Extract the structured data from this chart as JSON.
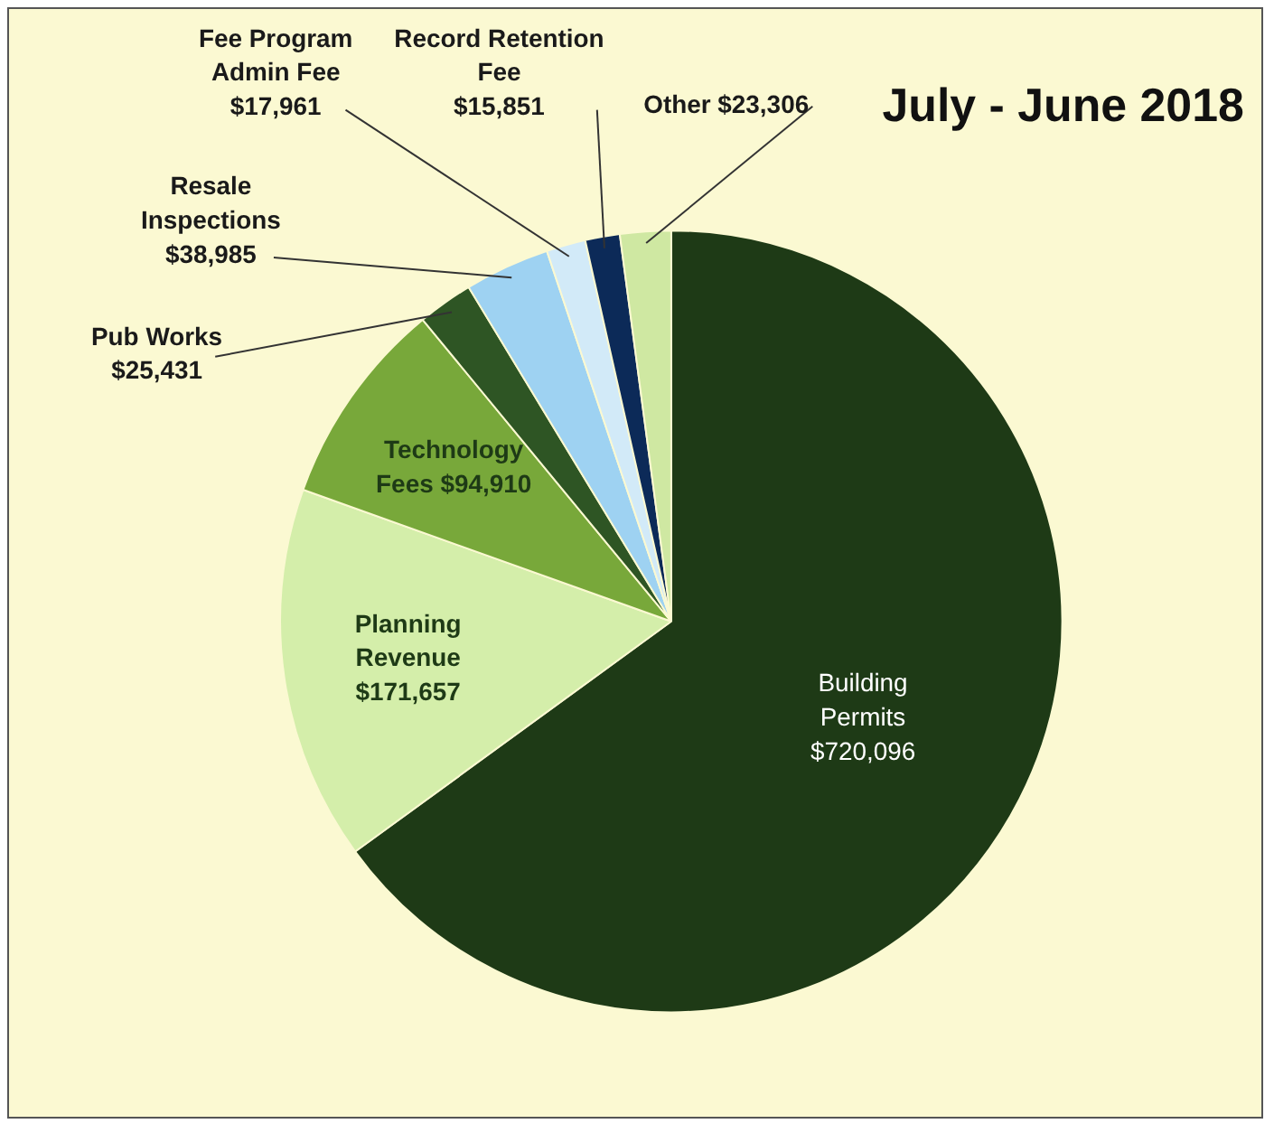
{
  "chart_data": {
    "type": "pie",
    "title": "July - June 2018",
    "categories": [
      "Building Permits",
      "Planning Revenue",
      "Technology Fees",
      "Pub Works",
      "Resale Inspections",
      "Fee Program Admin Fee",
      "Record Retention Fee",
      "Other"
    ],
    "values": [
      720096,
      171657,
      94910,
      25431,
      38985,
      17961,
      15851,
      23306
    ],
    "value_labels": [
      "$720,096",
      "$171,657",
      "$94,910",
      "$25,431",
      "$38,985",
      "$17,961",
      "$15,851",
      "$23,306"
    ],
    "colors": [
      "#1e3a16",
      "#d4eeaa",
      "#78a83a",
      "#2e5524",
      "#9ed2f2",
      "#d2eaf8",
      "#0c2a58",
      "#cfe8a2"
    ],
    "legend": false
  }
}
